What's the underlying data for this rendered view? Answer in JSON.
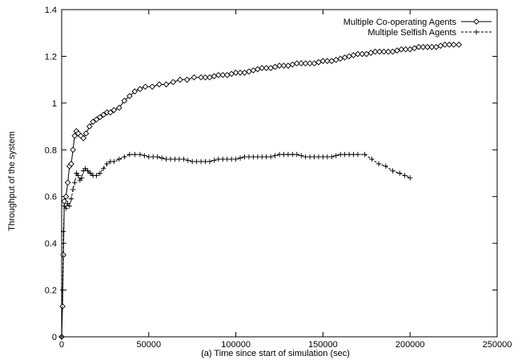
{
  "chart_data": {
    "type": "line",
    "title": "",
    "xlabel": "(a) Time since start of simulation (sec)",
    "ylabel": "Throughput of the system",
    "xlim": [
      0,
      250000
    ],
    "ylim": [
      0,
      1.4
    ],
    "xticks": [
      0,
      50000,
      100000,
      150000,
      200000,
      250000
    ],
    "xtick_labels": [
      "0",
      "50000",
      "100000",
      "150000",
      "200000",
      "250000"
    ],
    "yticks": [
      0,
      0.2,
      0.4,
      0.6,
      0.8,
      1,
      1.2,
      1.4
    ],
    "ytick_labels": [
      "0",
      "0.2",
      "0.4",
      "0.6",
      "0.8",
      "1",
      "1.2",
      "1.4"
    ],
    "grid": false,
    "legend_position": "top-right",
    "series": [
      {
        "name": "Multiple Co-operating Agents",
        "marker": "diamond",
        "line_style": "solid",
        "color": "#000000",
        "points": [
          [
            0,
            0
          ],
          [
            500,
            0.13
          ],
          [
            1000,
            0.35
          ],
          [
            1500,
            0.58
          ],
          [
            2500,
            0.6
          ],
          [
            3500,
            0.66
          ],
          [
            4500,
            0.73
          ],
          [
            5500,
            0.74
          ],
          [
            6500,
            0.8
          ],
          [
            7500,
            0.86
          ],
          [
            8500,
            0.88
          ],
          [
            9500,
            0.87
          ],
          [
            11000,
            0.86
          ],
          [
            12500,
            0.85
          ],
          [
            14000,
            0.87
          ],
          [
            16000,
            0.9
          ],
          [
            18000,
            0.92
          ],
          [
            20000,
            0.93
          ],
          [
            22000,
            0.94
          ],
          [
            24000,
            0.95
          ],
          [
            26000,
            0.96
          ],
          [
            28000,
            0.96
          ],
          [
            30000,
            0.97
          ],
          [
            33000,
            0.98
          ],
          [
            36000,
            1.01
          ],
          [
            39000,
            1.03
          ],
          [
            42000,
            1.05
          ],
          [
            45000,
            1.06
          ],
          [
            48000,
            1.07
          ],
          [
            52000,
            1.07
          ],
          [
            56000,
            1.08
          ],
          [
            60000,
            1.08
          ],
          [
            64000,
            1.09
          ],
          [
            68000,
            1.1
          ],
          [
            72000,
            1.1
          ],
          [
            76000,
            1.11
          ],
          [
            80000,
            1.11
          ],
          [
            85000,
            1.11
          ],
          [
            90000,
            1.12
          ],
          [
            95000,
            1.12
          ],
          [
            100000,
            1.13
          ],
          [
            105000,
            1.13
          ],
          [
            110000,
            1.14
          ],
          [
            115000,
            1.15
          ],
          [
            120000,
            1.15
          ],
          [
            125000,
            1.16
          ],
          [
            130000,
            1.16
          ],
          [
            135000,
            1.17
          ],
          [
            140000,
            1.17
          ],
          [
            145000,
            1.17
          ],
          [
            150000,
            1.18
          ],
          [
            155000,
            1.18
          ],
          [
            160000,
            1.19
          ],
          [
            165000,
            1.2
          ],
          [
            170000,
            1.21
          ],
          [
            175000,
            1.21
          ],
          [
            180000,
            1.22
          ],
          [
            185000,
            1.22
          ],
          [
            190000,
            1.22
          ],
          [
            195000,
            1.23
          ],
          [
            200000,
            1.23
          ],
          [
            205000,
            1.24
          ],
          [
            210000,
            1.24
          ],
          [
            215000,
            1.24
          ],
          [
            220000,
            1.25
          ],
          [
            225000,
            1.25
          ],
          [
            228000,
            1.25
          ]
        ]
      },
      {
        "name": "Multiple Selfish Agents",
        "marker": "plus",
        "line_style": "dashed",
        "color": "#000000",
        "points": [
          [
            0,
            0
          ],
          [
            500,
            0.2
          ],
          [
            1000,
            0.45
          ],
          [
            1500,
            0.56
          ],
          [
            2500,
            0.55
          ],
          [
            3500,
            0.57
          ],
          [
            4500,
            0.56
          ],
          [
            5500,
            0.59
          ],
          [
            6500,
            0.63
          ],
          [
            7500,
            0.66
          ],
          [
            8500,
            0.7
          ],
          [
            9500,
            0.69
          ],
          [
            10500,
            0.67
          ],
          [
            11500,
            0.68
          ],
          [
            12500,
            0.71
          ],
          [
            13500,
            0.72
          ],
          [
            15000,
            0.71
          ],
          [
            16500,
            0.7
          ],
          [
            18000,
            0.69
          ],
          [
            20000,
            0.69
          ],
          [
            22000,
            0.7
          ],
          [
            24000,
            0.72
          ],
          [
            26000,
            0.74
          ],
          [
            28000,
            0.75
          ],
          [
            30000,
            0.75
          ],
          [
            33000,
            0.76
          ],
          [
            36000,
            0.77
          ],
          [
            39000,
            0.78
          ],
          [
            42000,
            0.78
          ],
          [
            45000,
            0.78
          ],
          [
            50000,
            0.77
          ],
          [
            55000,
            0.77
          ],
          [
            60000,
            0.76
          ],
          [
            65000,
            0.76
          ],
          [
            70000,
            0.76
          ],
          [
            75000,
            0.75
          ],
          [
            80000,
            0.75
          ],
          [
            85000,
            0.75
          ],
          [
            90000,
            0.76
          ],
          [
            95000,
            0.76
          ],
          [
            100000,
            0.76
          ],
          [
            105000,
            0.77
          ],
          [
            110000,
            0.77
          ],
          [
            115000,
            0.77
          ],
          [
            120000,
            0.77
          ],
          [
            125000,
            0.78
          ],
          [
            130000,
            0.78
          ],
          [
            135000,
            0.78
          ],
          [
            140000,
            0.77
          ],
          [
            145000,
            0.77
          ],
          [
            150000,
            0.77
          ],
          [
            155000,
            0.77
          ],
          [
            160000,
            0.78
          ],
          [
            165000,
            0.78
          ],
          [
            170000,
            0.78
          ],
          [
            174000,
            0.78
          ],
          [
            178000,
            0.76
          ],
          [
            182000,
            0.74
          ],
          [
            186000,
            0.73
          ],
          [
            190000,
            0.71
          ],
          [
            194000,
            0.7
          ],
          [
            197000,
            0.69
          ],
          [
            200000,
            0.68
          ]
        ]
      }
    ]
  }
}
